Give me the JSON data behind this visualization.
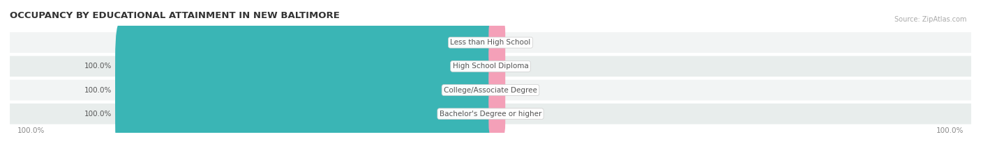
{
  "title": "OCCUPANCY BY EDUCATIONAL ATTAINMENT IN NEW BALTIMORE",
  "source": "Source: ZipAtlas.com",
  "categories": [
    "Less than High School",
    "High School Diploma",
    "College/Associate Degree",
    "Bachelor's Degree or higher"
  ],
  "owner_values": [
    0.0,
    100.0,
    100.0,
    100.0
  ],
  "renter_values": [
    0.0,
    0.0,
    0.0,
    0.0
  ],
  "owner_color": "#3ab5b5",
  "renter_color": "#f4a0b8",
  "row_colors": [
    "#f2f4f4",
    "#e8edec"
  ],
  "title_fontsize": 9.5,
  "source_fontsize": 7,
  "label_fontsize": 7.5,
  "cat_fontsize": 7.5,
  "legend_fontsize": 8,
  "background_color": "#ffffff",
  "axis_label_color": "#888888",
  "text_color": "#555555",
  "cat_label_color": "#555555"
}
